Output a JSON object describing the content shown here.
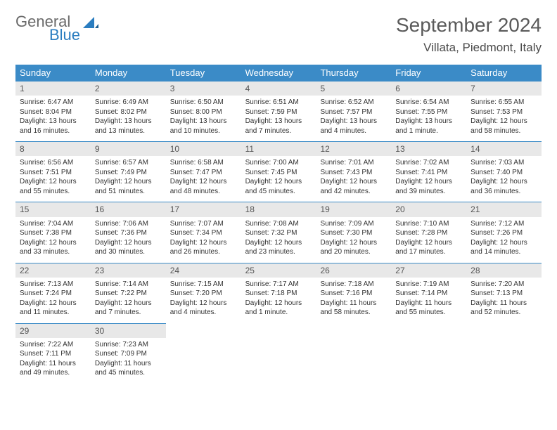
{
  "logo": {
    "line1": "General",
    "line2": "Blue"
  },
  "title": "September 2024",
  "location": "Villata, Piedmont, Italy",
  "day_names": [
    "Sunday",
    "Monday",
    "Tuesday",
    "Wednesday",
    "Thursday",
    "Friday",
    "Saturday"
  ],
  "colors": {
    "header_bg": "#3b8bc7",
    "header_text": "#ffffff",
    "daynum_bg": "#e8e8e8",
    "daynum_border": "#3b8bc7",
    "text": "#333333",
    "title_text": "#5a5a5a",
    "logo_gray": "#6a6a6a",
    "logo_blue": "#2a7dc0"
  },
  "weeks": [
    [
      {
        "n": "1",
        "sr": "Sunrise: 6:47 AM",
        "ss": "Sunset: 8:04 PM",
        "dl1": "Daylight: 13 hours",
        "dl2": "and 16 minutes."
      },
      {
        "n": "2",
        "sr": "Sunrise: 6:49 AM",
        "ss": "Sunset: 8:02 PM",
        "dl1": "Daylight: 13 hours",
        "dl2": "and 13 minutes."
      },
      {
        "n": "3",
        "sr": "Sunrise: 6:50 AM",
        "ss": "Sunset: 8:00 PM",
        "dl1": "Daylight: 13 hours",
        "dl2": "and 10 minutes."
      },
      {
        "n": "4",
        "sr": "Sunrise: 6:51 AM",
        "ss": "Sunset: 7:59 PM",
        "dl1": "Daylight: 13 hours",
        "dl2": "and 7 minutes."
      },
      {
        "n": "5",
        "sr": "Sunrise: 6:52 AM",
        "ss": "Sunset: 7:57 PM",
        "dl1": "Daylight: 13 hours",
        "dl2": "and 4 minutes."
      },
      {
        "n": "6",
        "sr": "Sunrise: 6:54 AM",
        "ss": "Sunset: 7:55 PM",
        "dl1": "Daylight: 13 hours",
        "dl2": "and 1 minute."
      },
      {
        "n": "7",
        "sr": "Sunrise: 6:55 AM",
        "ss": "Sunset: 7:53 PM",
        "dl1": "Daylight: 12 hours",
        "dl2": "and 58 minutes."
      }
    ],
    [
      {
        "n": "8",
        "sr": "Sunrise: 6:56 AM",
        "ss": "Sunset: 7:51 PM",
        "dl1": "Daylight: 12 hours",
        "dl2": "and 55 minutes."
      },
      {
        "n": "9",
        "sr": "Sunrise: 6:57 AM",
        "ss": "Sunset: 7:49 PM",
        "dl1": "Daylight: 12 hours",
        "dl2": "and 51 minutes."
      },
      {
        "n": "10",
        "sr": "Sunrise: 6:58 AM",
        "ss": "Sunset: 7:47 PM",
        "dl1": "Daylight: 12 hours",
        "dl2": "and 48 minutes."
      },
      {
        "n": "11",
        "sr": "Sunrise: 7:00 AM",
        "ss": "Sunset: 7:45 PM",
        "dl1": "Daylight: 12 hours",
        "dl2": "and 45 minutes."
      },
      {
        "n": "12",
        "sr": "Sunrise: 7:01 AM",
        "ss": "Sunset: 7:43 PM",
        "dl1": "Daylight: 12 hours",
        "dl2": "and 42 minutes."
      },
      {
        "n": "13",
        "sr": "Sunrise: 7:02 AM",
        "ss": "Sunset: 7:41 PM",
        "dl1": "Daylight: 12 hours",
        "dl2": "and 39 minutes."
      },
      {
        "n": "14",
        "sr": "Sunrise: 7:03 AM",
        "ss": "Sunset: 7:40 PM",
        "dl1": "Daylight: 12 hours",
        "dl2": "and 36 minutes."
      }
    ],
    [
      {
        "n": "15",
        "sr": "Sunrise: 7:04 AM",
        "ss": "Sunset: 7:38 PM",
        "dl1": "Daylight: 12 hours",
        "dl2": "and 33 minutes."
      },
      {
        "n": "16",
        "sr": "Sunrise: 7:06 AM",
        "ss": "Sunset: 7:36 PM",
        "dl1": "Daylight: 12 hours",
        "dl2": "and 30 minutes."
      },
      {
        "n": "17",
        "sr": "Sunrise: 7:07 AM",
        "ss": "Sunset: 7:34 PM",
        "dl1": "Daylight: 12 hours",
        "dl2": "and 26 minutes."
      },
      {
        "n": "18",
        "sr": "Sunrise: 7:08 AM",
        "ss": "Sunset: 7:32 PM",
        "dl1": "Daylight: 12 hours",
        "dl2": "and 23 minutes."
      },
      {
        "n": "19",
        "sr": "Sunrise: 7:09 AM",
        "ss": "Sunset: 7:30 PM",
        "dl1": "Daylight: 12 hours",
        "dl2": "and 20 minutes."
      },
      {
        "n": "20",
        "sr": "Sunrise: 7:10 AM",
        "ss": "Sunset: 7:28 PM",
        "dl1": "Daylight: 12 hours",
        "dl2": "and 17 minutes."
      },
      {
        "n": "21",
        "sr": "Sunrise: 7:12 AM",
        "ss": "Sunset: 7:26 PM",
        "dl1": "Daylight: 12 hours",
        "dl2": "and 14 minutes."
      }
    ],
    [
      {
        "n": "22",
        "sr": "Sunrise: 7:13 AM",
        "ss": "Sunset: 7:24 PM",
        "dl1": "Daylight: 12 hours",
        "dl2": "and 11 minutes."
      },
      {
        "n": "23",
        "sr": "Sunrise: 7:14 AM",
        "ss": "Sunset: 7:22 PM",
        "dl1": "Daylight: 12 hours",
        "dl2": "and 7 minutes."
      },
      {
        "n": "24",
        "sr": "Sunrise: 7:15 AM",
        "ss": "Sunset: 7:20 PM",
        "dl1": "Daylight: 12 hours",
        "dl2": "and 4 minutes."
      },
      {
        "n": "25",
        "sr": "Sunrise: 7:17 AM",
        "ss": "Sunset: 7:18 PM",
        "dl1": "Daylight: 12 hours",
        "dl2": "and 1 minute."
      },
      {
        "n": "26",
        "sr": "Sunrise: 7:18 AM",
        "ss": "Sunset: 7:16 PM",
        "dl1": "Daylight: 11 hours",
        "dl2": "and 58 minutes."
      },
      {
        "n": "27",
        "sr": "Sunrise: 7:19 AM",
        "ss": "Sunset: 7:14 PM",
        "dl1": "Daylight: 11 hours",
        "dl2": "and 55 minutes."
      },
      {
        "n": "28",
        "sr": "Sunrise: 7:20 AM",
        "ss": "Sunset: 7:13 PM",
        "dl1": "Daylight: 11 hours",
        "dl2": "and 52 minutes."
      }
    ],
    [
      {
        "n": "29",
        "sr": "Sunrise: 7:22 AM",
        "ss": "Sunset: 7:11 PM",
        "dl1": "Daylight: 11 hours",
        "dl2": "and 49 minutes."
      },
      {
        "n": "30",
        "sr": "Sunrise: 7:23 AM",
        "ss": "Sunset: 7:09 PM",
        "dl1": "Daylight: 11 hours",
        "dl2": "and 45 minutes."
      },
      {
        "empty": true
      },
      {
        "empty": true
      },
      {
        "empty": true
      },
      {
        "empty": true
      },
      {
        "empty": true
      }
    ]
  ]
}
